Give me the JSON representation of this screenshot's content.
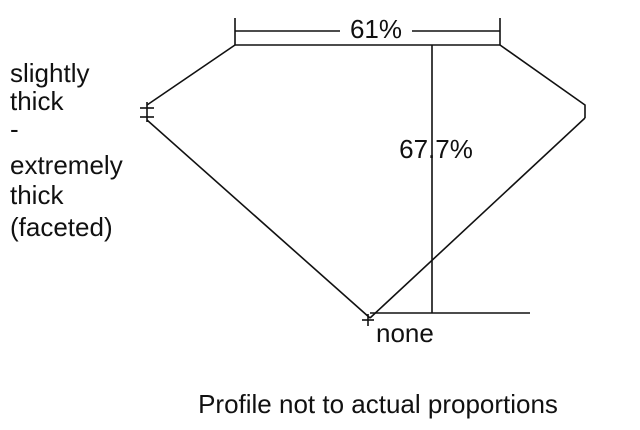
{
  "diagram": {
    "table_label": "61%",
    "depth_label": "67.7%",
    "girdle_label": [
      "slightly",
      "thick",
      "-",
      "extremely",
      "thick",
      "(faceted)"
    ],
    "culet_label": "none",
    "caption": "Profile not to actual proportions"
  }
}
